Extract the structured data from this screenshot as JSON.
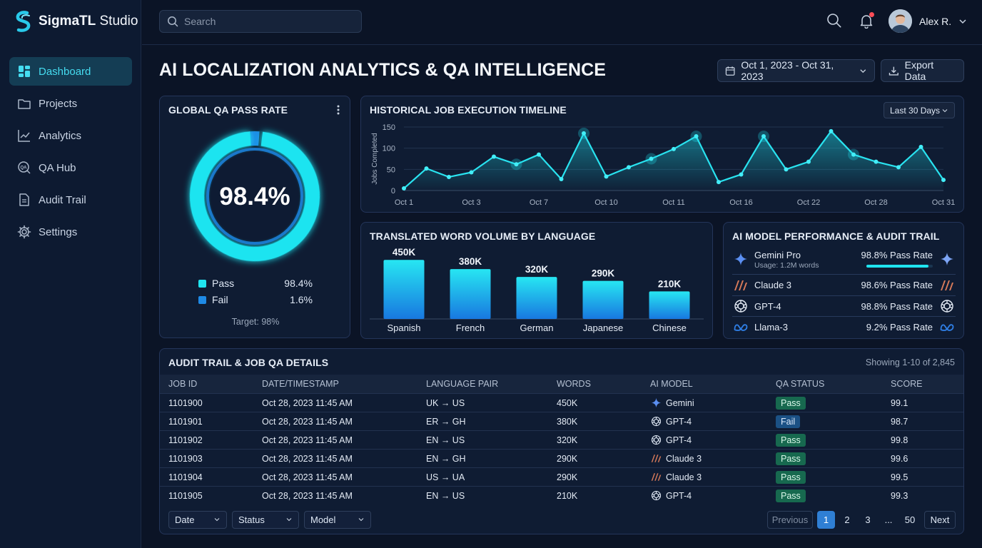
{
  "app": {
    "brand_bold": "SigmaTL",
    "brand_rest": " Studio"
  },
  "sidebar": {
    "items": [
      {
        "label": "Dashboard",
        "icon": "dashboard-icon",
        "active": true
      },
      {
        "label": "Projects",
        "icon": "folder-icon"
      },
      {
        "label": "Analytics",
        "icon": "analytics-icon"
      },
      {
        "label": "QA Hub",
        "icon": "qa-hub-icon"
      },
      {
        "label": "Audit Trail",
        "icon": "document-icon"
      },
      {
        "label": "Settings",
        "icon": "gear-icon"
      }
    ]
  },
  "topbar": {
    "search_placeholder": "Search",
    "user_name": "Alex R."
  },
  "header": {
    "title": "AI LOCALIZATION ANALYTICS & QA INTELLIGENCE",
    "date_range": "Oct 1, 2023 - Oct 31, 2023",
    "export_label": "Export Data"
  },
  "qa_card": {
    "title": "GLOBAL QA PASS RATE",
    "value": "98.4%",
    "pass_fraction": 0.984,
    "legend": [
      {
        "label": "Pass",
        "value": "98.4%",
        "color": "#1fe4f0"
      },
      {
        "label": "Fail",
        "value": "1.6%",
        "color": "#1e8ae6"
      }
    ],
    "target": "Target: 98%"
  },
  "timeline_card": {
    "title": "HISTORICAL JOB EXECUTION TIMELINE",
    "range_select": "Last 30 Days"
  },
  "volume_card": {
    "title": "TRANSLATED WORD VOLUME BY LANGUAGE"
  },
  "models_card": {
    "title": "AI MODEL PERFORMANCE & AUDIT TRAIL",
    "models": [
      {
        "name": "Gemini Pro",
        "sub": "Usage: 1.2M words",
        "rate": "98.8% Pass Rate",
        "icon": "gemini-icon",
        "bar": 0.94
      },
      {
        "name": "Claude 3",
        "rate": "98.6% Pass Rate",
        "icon": "claude-icon"
      },
      {
        "name": "GPT-4",
        "rate": "98.8% Pass Rate",
        "icon": "openai-icon"
      },
      {
        "name": "Llama-3",
        "rate": "9.2% Pass Rate",
        "icon": "meta-icon"
      }
    ]
  },
  "table": {
    "title": "AUDIT TRAIL & JOB QA DETAILS",
    "showing": "Showing 1-10 of 2,845",
    "columns": [
      "JOB ID",
      "DATE/TIMESTAMP",
      "LANGUAGE PAIR",
      "WORDS",
      "AI MODEL",
      "QA STATUS",
      "SCORE"
    ],
    "rows": [
      {
        "id": "1101900",
        "date": "Oct 28, 2023 11:45 AM",
        "pair": "UK → US",
        "words": "450K",
        "model": "Gemini",
        "model_icon": "gemini-icon",
        "status": "Pass",
        "score": "99.1"
      },
      {
        "id": "1101901",
        "date": "Oct 28, 2023 11:45 AM",
        "pair": "ER → GH",
        "words": "380K",
        "model": "GPT-4",
        "model_icon": "openai-icon",
        "status": "Fail",
        "score": "98.7"
      },
      {
        "id": "1101902",
        "date": "Oct 28, 2023 11:45 AM",
        "pair": "EN → US",
        "words": "320K",
        "model": "GPT-4",
        "model_icon": "openai-icon",
        "status": "Pass",
        "score": "99.8"
      },
      {
        "id": "1101903",
        "date": "Oct 28, 2023 11:45 AM",
        "pair": "EN → GH",
        "words": "290K",
        "model": "Claude 3",
        "model_icon": "claude-icon",
        "status": "Pass",
        "score": "99.6"
      },
      {
        "id": "1101904",
        "date": "Oct 28, 2023 11:45 AM",
        "pair": "US → UA",
        "words": "290K",
        "model": "Claude 3",
        "model_icon": "claude-icon",
        "status": "Pass",
        "score": "99.5"
      },
      {
        "id": "1101905",
        "date": "Oct 28, 2023 11:45 AM",
        "pair": "EN → US",
        "words": "210K",
        "model": "GPT-4",
        "model_icon": "openai-icon",
        "status": "Pass",
        "score": "99.3"
      }
    ],
    "filters": [
      "Date",
      "Status",
      "Model"
    ],
    "pagination": {
      "previous": "Previous",
      "pages": [
        "1",
        "2",
        "3",
        "...",
        "50"
      ],
      "current": "1",
      "next": "Next"
    }
  },
  "colors": {
    "accent": "#1fe4f0",
    "active_page": "#2f7fd4",
    "pass": "#17694f",
    "fail": "#1b5185"
  },
  "chart_data": [
    {
      "type": "area",
      "title": "HISTORICAL JOB EXECUTION TIMELINE",
      "ylabel": "Jobs Completed",
      "xlabel": "",
      "ylim": [
        0,
        150
      ],
      "yticks": [
        0,
        50,
        100,
        150
      ],
      "x_tick_labels": [
        "Oct 1",
        "Oct 3",
        "Oct 7",
        "Oct 10",
        "Oct 11",
        "Oct 16",
        "Oct 22",
        "Oct 28",
        "Oct 31"
      ],
      "values": [
        5,
        52,
        32,
        43,
        80,
        62,
        85,
        27,
        135,
        33,
        55,
        75,
        98,
        128,
        20,
        38,
        128,
        50,
        68,
        140,
        85,
        68,
        55,
        103,
        25
      ],
      "highlight_indices": [
        5,
        8,
        11,
        13,
        16,
        20
      ],
      "grid": true,
      "legend": "none"
    },
    {
      "type": "bar",
      "title": "TRANSLATED WORD VOLUME BY LANGUAGE",
      "categories": [
        "Spanish",
        "French",
        "German",
        "Japanese",
        "Chinese"
      ],
      "values": [
        450,
        380,
        320,
        290,
        210
      ],
      "data_labels": [
        "450K",
        "380K",
        "320K",
        "290K",
        "210K"
      ],
      "unit": "K words",
      "ylim": [
        0,
        500
      ]
    }
  ]
}
